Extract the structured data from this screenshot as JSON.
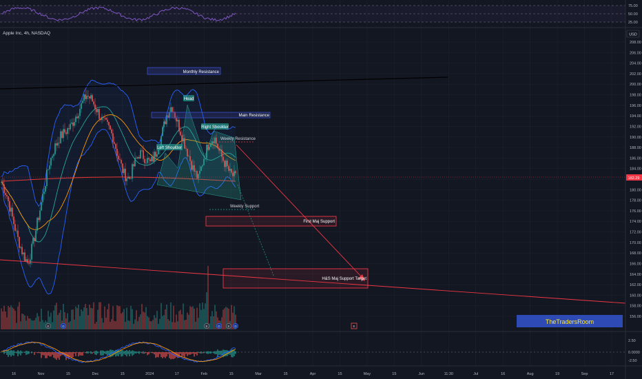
{
  "header": {
    "symbol_title": "Apple Inc, 4h, NASDAQ",
    "currency": "USD"
  },
  "price_axis": {
    "ticks": [
      "208.00",
      "206.00",
      "204.00",
      "202.00",
      "200.00",
      "198.00",
      "196.00",
      "194.00",
      "192.00",
      "190.00",
      "188.00",
      "186.00",
      "184.00",
      "182.00",
      "180.00",
      "178.00",
      "176.00",
      "174.00",
      "172.00",
      "170.00",
      "168.00",
      "166.00",
      "164.00",
      "162.00",
      "160.00",
      "158.00",
      "156.00"
    ],
    "last_price_label": "182.29"
  },
  "rsi_axis": {
    "ticks": [
      "75.00",
      "50.00",
      "25.00"
    ]
  },
  "macd_axis": {
    "ticks": [
      "2.50",
      "0.0000",
      "-2.50"
    ]
  },
  "time_axis": {
    "ticks": [
      "16",
      "Nov",
      "15",
      "Dec",
      "15",
      "2024",
      "17",
      "Feb",
      "15",
      "Mar",
      "15",
      "Apr",
      "15",
      "May",
      "15",
      "Jun",
      "11:30",
      "Jul",
      "16",
      "Aug",
      "19",
      "Sep",
      "17"
    ]
  },
  "annotations": {
    "monthly_resistance": "Monthly Resistance",
    "main_resistance": "Main Resistance",
    "head": "Head",
    "right_shoulder": "Right Shoulder",
    "left_shoulder": "Left Shoulder",
    "weekly_resistance": "Weekly Resistance",
    "weekly_support": "Weekly Support",
    "first_maj_support": "First Maj Support",
    "hs_target": "H&S Maj Support Target"
  },
  "branding": {
    "watermark": "TheTradersRoom"
  },
  "event_markers": [
    "E",
    "D",
    "E",
    "D",
    "E",
    "D",
    "E"
  ],
  "colors": {
    "up": "#26a69a",
    "down": "#ef5350",
    "accent": "#2962ff",
    "box_red": "#f23645",
    "box_blue": "#3b4fd0",
    "rsi": "#7e57c2",
    "bg": "#131722"
  },
  "chart_data": {
    "type": "candlestick",
    "symbol": "Apple Inc, 4h, NASDAQ",
    "x_ticks": [
      "16",
      "Nov",
      "15",
      "Dec",
      "15",
      "2024",
      "17",
      "Feb",
      "15",
      "Mar",
      "15",
      "Apr",
      "15",
      "May",
      "15",
      "Jun",
      "11:30",
      "Jul",
      "16",
      "Aug",
      "19",
      "Sep",
      "17"
    ],
    "y_range": [
      155,
      209
    ],
    "close_path": [
      181.5,
      179,
      175,
      171,
      168,
      166,
      170,
      175,
      180,
      185,
      188,
      190,
      191,
      192,
      194,
      196,
      198,
      197,
      195,
      193,
      192,
      190,
      186,
      183,
      182,
      185,
      187,
      186,
      185,
      187,
      190,
      194,
      196,
      193,
      190,
      187,
      184,
      182,
      186,
      189,
      190,
      187,
      185,
      183,
      182.29
    ],
    "last_price": 182.29,
    "levels": {
      "monthly_resistance": [
        202.0,
        203.0
      ],
      "main_resistance": [
        194.0,
        195.0
      ],
      "weekly_resistance": 189.0,
      "weekly_support": 176.5,
      "first_maj_support": [
        173.3,
        174.9
      ],
      "hs_target": [
        161.6,
        165.2
      ]
    },
    "rsi_range": [
      25,
      75
    ],
    "macd_range": [
      -2.5,
      2.5
    ]
  }
}
